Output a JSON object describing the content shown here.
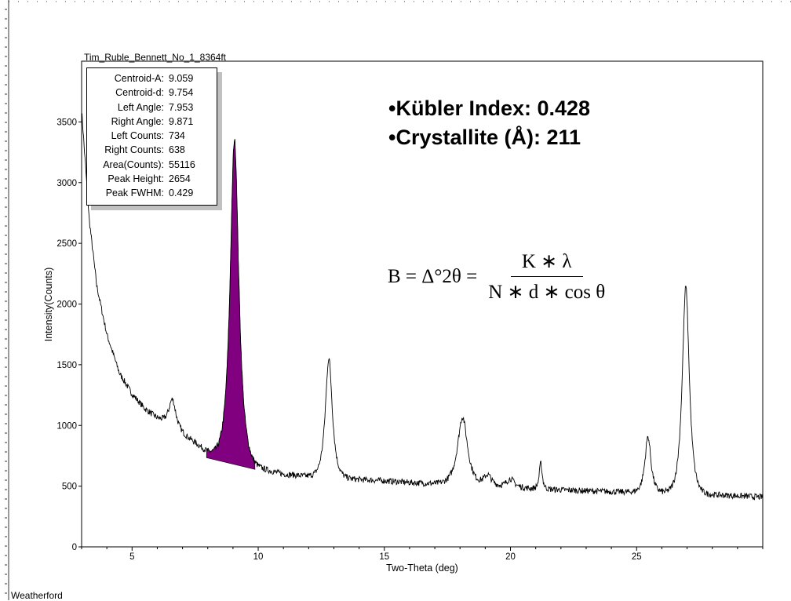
{
  "chart_data": {
    "type": "line",
    "title": "Tim_Ruble_Bennett_No_1_8364ft",
    "xlabel": "Two-Theta (deg)",
    "ylabel": "Intensity(Counts)",
    "xlim": [
      3.0,
      30.0
    ],
    "ylim": [
      0,
      4000
    ],
    "xticks": [
      5,
      10,
      15,
      20,
      25
    ],
    "yticks": [
      0,
      500,
      1000,
      1500,
      2000,
      2500,
      3000,
      3500
    ],
    "background": [
      [
        3.0,
        3600
      ],
      [
        3.3,
        2700
      ],
      [
        3.6,
        2150
      ],
      [
        4.0,
        1750
      ],
      [
        4.5,
        1430
      ],
      [
        5.0,
        1260
      ],
      [
        5.5,
        1140
      ],
      [
        6.0,
        1060
      ],
      [
        6.5,
        1000
      ],
      [
        7.0,
        930
      ],
      [
        7.5,
        860
      ],
      [
        8.0,
        780
      ],
      [
        8.5,
        730
      ],
      [
        9.0,
        700
      ],
      [
        9.5,
        680
      ],
      [
        10.0,
        650
      ],
      [
        11.0,
        600
      ],
      [
        12.0,
        580
      ],
      [
        13.0,
        570
      ],
      [
        14.0,
        555
      ],
      [
        15.0,
        545
      ],
      [
        16.0,
        530
      ],
      [
        17.0,
        520
      ],
      [
        18.0,
        510
      ],
      [
        19.0,
        500
      ],
      [
        20.0,
        490
      ],
      [
        21.0,
        480
      ],
      [
        22.0,
        470
      ],
      [
        23.0,
        462
      ],
      [
        24.0,
        455
      ],
      [
        25.0,
        450
      ],
      [
        26.0,
        445
      ],
      [
        27.0,
        440
      ],
      [
        28.0,
        430
      ],
      [
        29.0,
        420
      ],
      [
        30.0,
        410
      ]
    ],
    "peaks": [
      {
        "center": 6.6,
        "height": 230,
        "fwhm": 0.35
      },
      {
        "center": 9.06,
        "height": 2654,
        "fwhm": 0.429
      },
      {
        "center": 12.8,
        "height": 980,
        "fwhm": 0.35
      },
      {
        "center": 18.1,
        "height": 560,
        "fwhm": 0.5
      },
      {
        "center": 19.1,
        "height": 90,
        "fwhm": 0.4
      },
      {
        "center": 20.0,
        "height": 70,
        "fwhm": 0.4
      },
      {
        "center": 21.2,
        "height": 210,
        "fwhm": 0.15
      },
      {
        "center": 25.45,
        "height": 460,
        "fwhm": 0.3
      },
      {
        "center": 26.95,
        "height": 1700,
        "fwhm": 0.35
      }
    ],
    "noise_amplitude": 25,
    "highlight_peak": {
      "left_angle": 7.953,
      "right_angle": 9.871,
      "left_counts": 734,
      "right_counts": 638,
      "color": "#800080"
    },
    "line_color": "#000000"
  },
  "info_box": [
    {
      "label": "Centroid-A:",
      "value": "9.059"
    },
    {
      "label": "Centroid-d:",
      "value": "9.754"
    },
    {
      "label": "Left Angle:",
      "value": "7.953"
    },
    {
      "label": "Right Angle:",
      "value": "9.871"
    },
    {
      "label": "Left Counts:",
      "value": "734"
    },
    {
      "label": "Right Counts:",
      "value": "638"
    },
    {
      "label": "Area(Counts):",
      "value": "55116"
    },
    {
      "label": "Peak Height:",
      "value": "2654"
    },
    {
      "label": "Peak FWHM:",
      "value": "0.429"
    }
  ],
  "callouts": {
    "kubler": "•Kübler Index: 0.428",
    "crystallite": "•Crystallite (Å): 211"
  },
  "formula": {
    "lhs": "B = Δ°2θ =",
    "numerator": "K ∗ λ",
    "denominator": "N ∗ d ∗ cos θ"
  },
  "footer": "Weatherford"
}
